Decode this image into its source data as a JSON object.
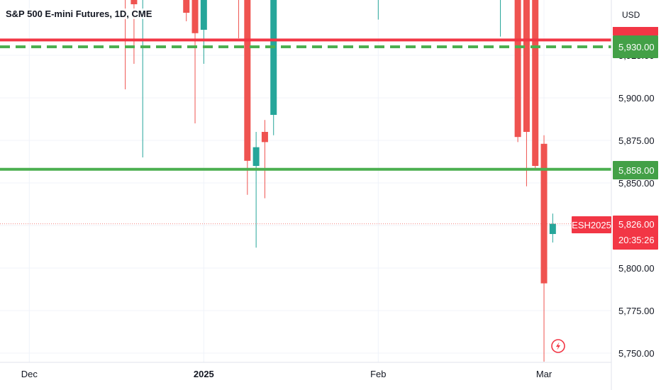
{
  "header": {
    "symbol_title": "S&P 500 E-mini Futures, 1D, CME",
    "currency": "USD"
  },
  "colors": {
    "up": "#26a69a",
    "down": "#ef5350",
    "resistance_line": "#f23645",
    "support_line": "#4caf50",
    "grid": "#f0f3fa",
    "price_tag": "#f23645",
    "support_tag": "#43a047"
  },
  "chart_data": {
    "type": "candlestick",
    "symbol": "ESH2025",
    "y_axis": {
      "ylim": [
        5746,
        5981
      ],
      "ticks": [
        5750,
        5775,
        5800,
        5825,
        5850,
        5875,
        5900,
        5925
      ],
      "tick_labels": [
        "5,750.00",
        "5,775.00",
        "5,800.00",
        "5,825.00",
        "5,850.00",
        "5,875.00",
        "5,900.00",
        "5,925.00"
      ]
    },
    "x_axis": {
      "tick_labels": [
        {
          "label": "Dec",
          "index": 3
        },
        {
          "label": "2025",
          "index": 23
        },
        {
          "label": "Feb",
          "index": 43
        },
        {
          "label": "Mar",
          "index": 62
        }
      ]
    },
    "candles": [
      {
        "i": 14,
        "o": 5990,
        "h": 5995,
        "l": 5905,
        "c": 5970
      },
      {
        "i": 15,
        "o": 5985,
        "h": 5995,
        "l": 5920,
        "c": 5955
      },
      {
        "i": 16,
        "o": 5960,
        "h": 5995,
        "l": 5865,
        "c": 5990
      },
      {
        "i": 21,
        "o": 5990,
        "h": 5995,
        "l": 5945,
        "c": 5950
      },
      {
        "i": 22,
        "o": 5980,
        "h": 5995,
        "l": 5885,
        "c": 5938
      },
      {
        "i": 23,
        "o": 5940,
        "h": 5995,
        "l": 5920,
        "c": 5995
      },
      {
        "i": 25,
        "o": 5995,
        "h": 5998,
        "l": 5975,
        "c": 5990
      },
      {
        "i": 26,
        "o": 5990,
        "h": 5998,
        "l": 5980,
        "c": 5995
      },
      {
        "i": 27,
        "o": 5998,
        "h": 5998,
        "l": 5935,
        "c": 5985
      },
      {
        "i": 28,
        "o": 5960,
        "h": 5968,
        "l": 5843,
        "c": 5863
      },
      {
        "i": 29,
        "o": 5860,
        "h": 5880,
        "l": 5812,
        "c": 5871
      },
      {
        "i": 30,
        "o": 5880,
        "h": 5887,
        "l": 5841,
        "c": 5874
      },
      {
        "i": 31,
        "o": 5890,
        "h": 5995,
        "l": 5878,
        "c": 5995
      },
      {
        "i": 38,
        "o": 5992,
        "h": 5998,
        "l": 5988,
        "c": 5995
      },
      {
        "i": 43,
        "o": 5995,
        "h": 5998,
        "l": 5946,
        "c": 5998
      },
      {
        "i": 57,
        "o": 5998,
        "h": 5998,
        "l": 5936,
        "c": 5998
      },
      {
        "i": 59,
        "o": 5998,
        "h": 5998,
        "l": 5874,
        "c": 5877
      },
      {
        "i": 60,
        "o": 5998,
        "h": 5998,
        "l": 5848,
        "c": 5880
      },
      {
        "i": 61,
        "o": 5998,
        "h": 5998,
        "l": 5858,
        "c": 5860
      },
      {
        "i": 62,
        "o": 5873,
        "h": 5878,
        "l": 5745,
        "c": 5791
      },
      {
        "i": 63,
        "o": 5820,
        "h": 5832,
        "l": 5815,
        "c": 5826
      }
    ],
    "horizontal_lines": [
      {
        "name": "resistance",
        "value": 5934,
        "style": "solid",
        "color_key": "resistance_line"
      },
      {
        "name": "resistance-dashed",
        "value": 5930,
        "style": "dashed",
        "color_key": "support_line"
      },
      {
        "name": "support",
        "value": 5858,
        "style": "solid",
        "color_key": "support_line"
      }
    ],
    "current_price_line": 5826,
    "price_labels": {
      "resistance_tag": "5,930.00",
      "support_tag": "5,858.00",
      "current_price": "5,826.00",
      "countdown": "20:35:26",
      "symbol_tag": "ESH2025"
    },
    "grid": true
  }
}
